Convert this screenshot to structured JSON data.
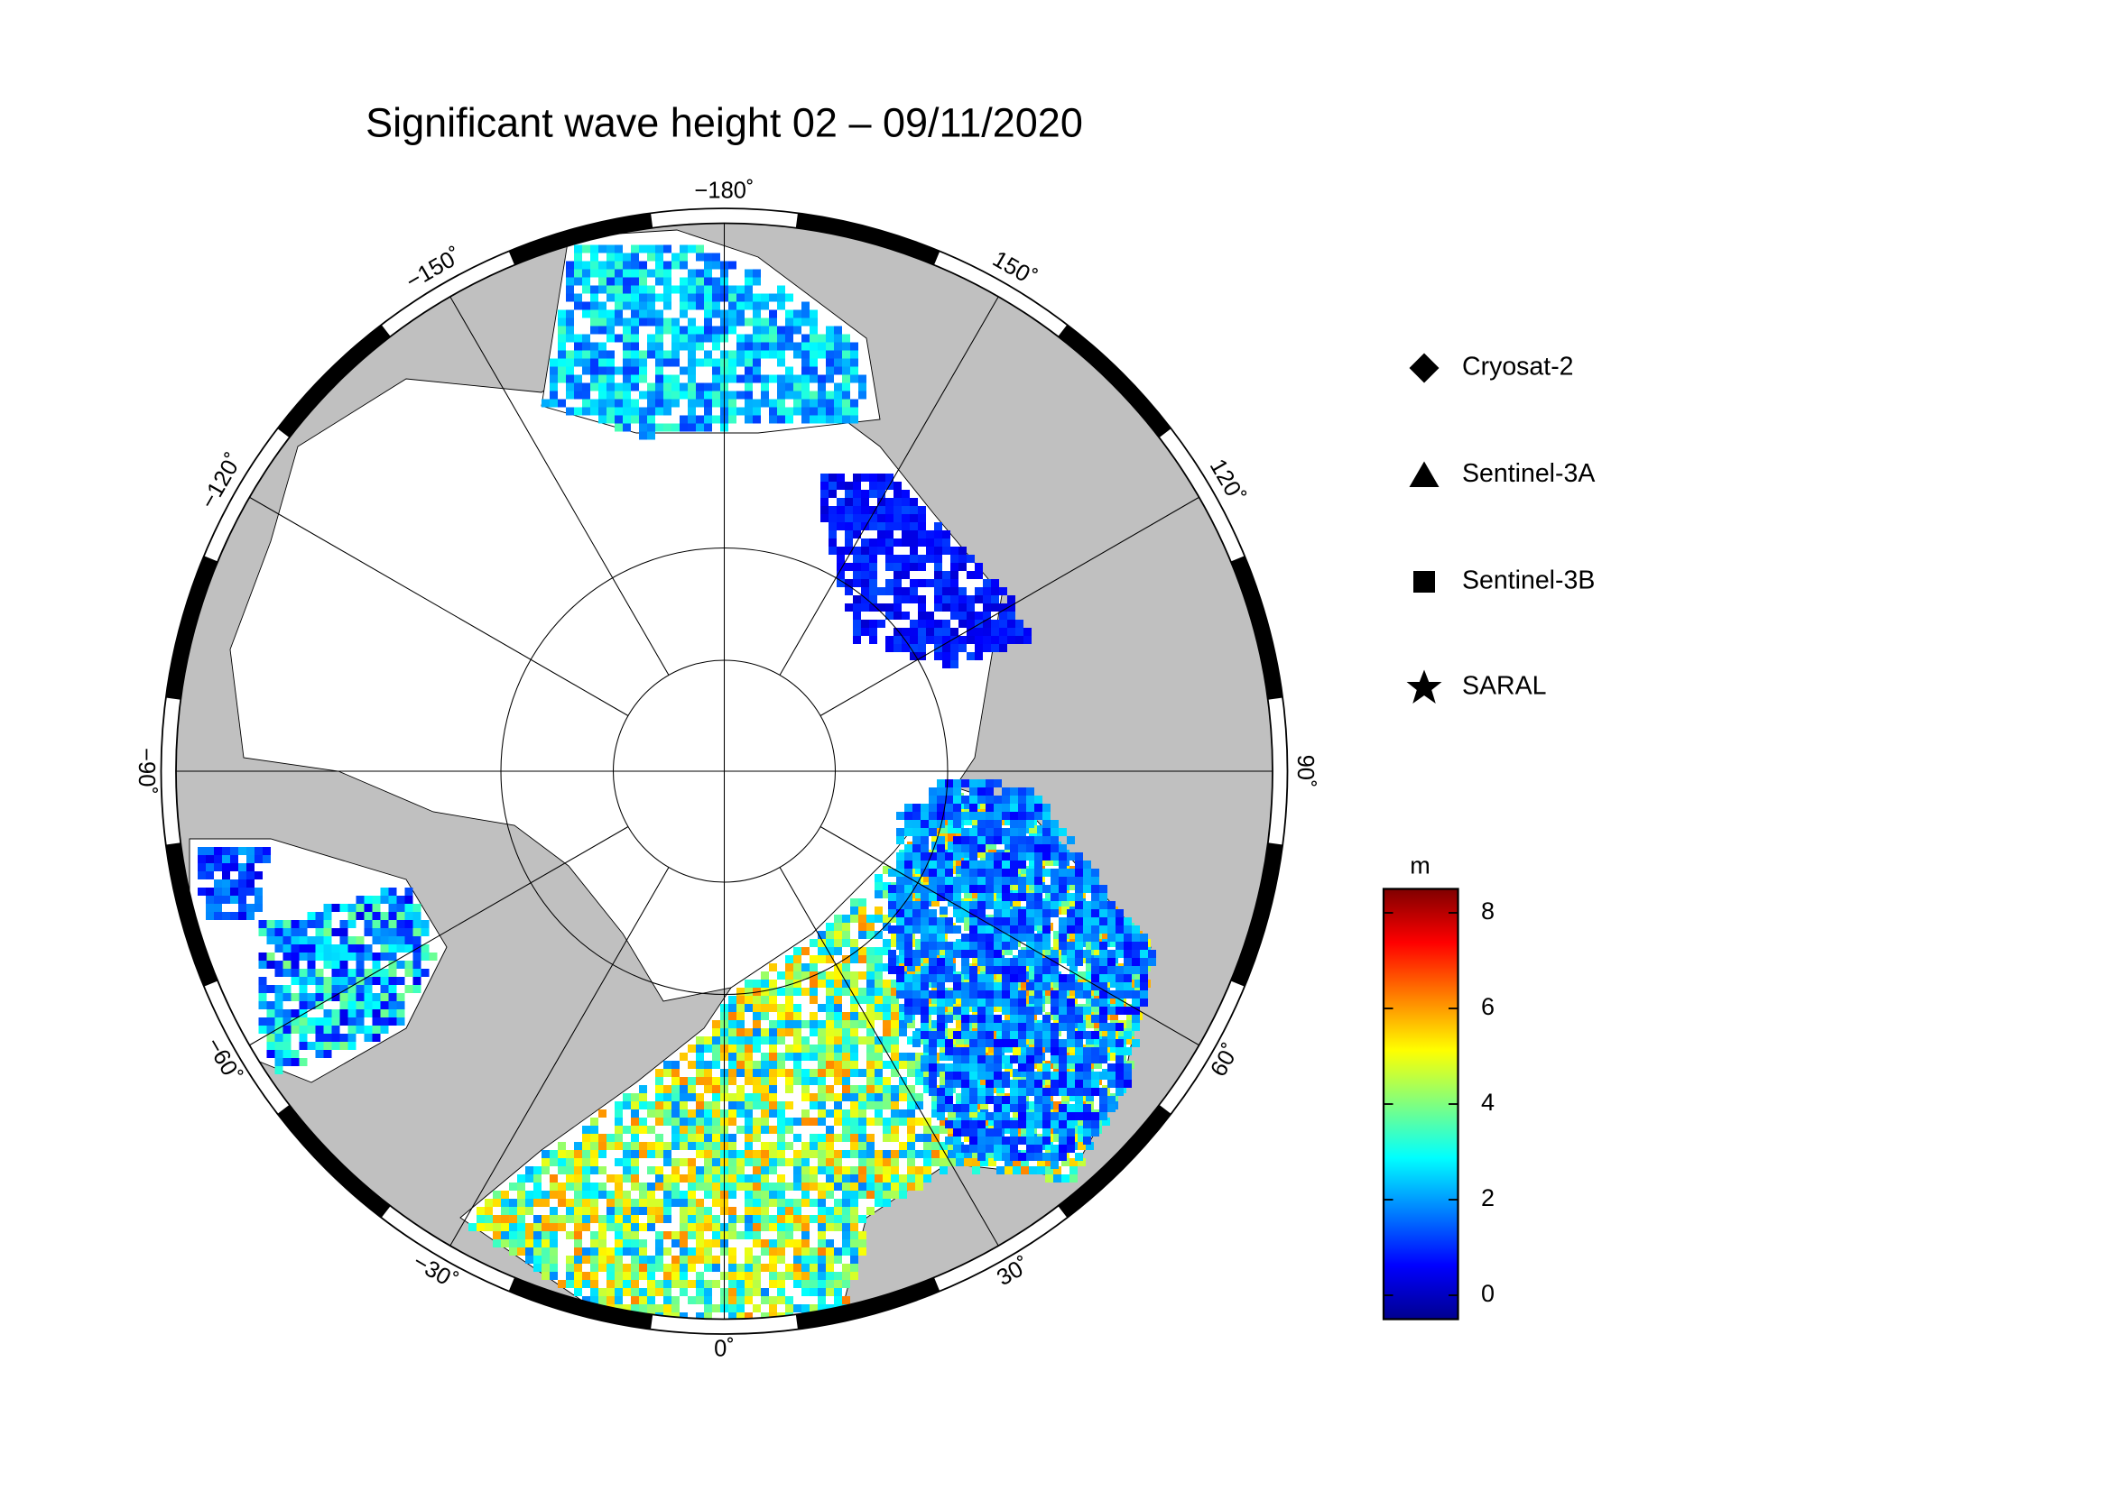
{
  "map": {
    "title": "Significant wave height 02 – 09/11/2020",
    "meridians": [
      {
        "value": -180,
        "label": "−180˚"
      },
      {
        "value": -150,
        "label": "−150˚"
      },
      {
        "value": -120,
        "label": "−120˚"
      },
      {
        "value": -90,
        "label": "−90˚"
      },
      {
        "value": -60,
        "label": "−60˚"
      },
      {
        "value": -30,
        "label": "−30˚"
      },
      {
        "value": 0,
        "label": "0˚"
      },
      {
        "value": 30,
        "label": "30˚"
      },
      {
        "value": 60,
        "label": "60˚"
      },
      {
        "value": 90,
        "label": "90˚"
      },
      {
        "value": 120,
        "label": "120˚"
      },
      {
        "value": 150,
        "label": "150˚"
      }
    ],
    "legend": [
      "Cryosat-2",
      "Sentinel-3A",
      "Sentinel-3B",
      "SARAL"
    ],
    "colorbar": {
      "label": "m",
      "clim": [
        -0.5,
        8.5
      ],
      "ticks": [
        0,
        2,
        4,
        6,
        8
      ]
    }
  }
}
